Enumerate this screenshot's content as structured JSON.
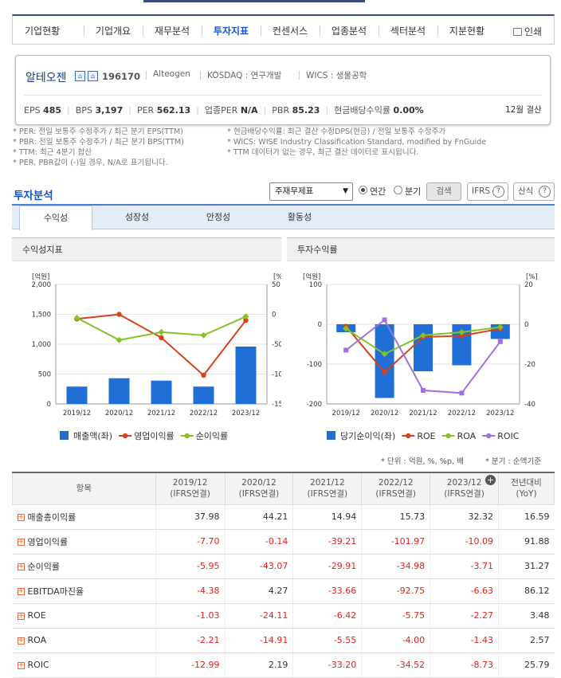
{
  "nav": {
    "tabs": [
      "기업현황",
      "기업개요",
      "재무분석",
      "투자지표",
      "컨센서스",
      "업종분석",
      "섹터분석",
      "지분현황"
    ],
    "active": "투자지표",
    "print_label": "인쇄"
  },
  "company": {
    "name": "알테오젠",
    "code": "196170",
    "eng_name": "Alteogen",
    "market": "KOSDAQ : 연구개발",
    "wics": "WICS : 생물공학",
    "metrics": [
      {
        "label": "EPS",
        "value": "485"
      },
      {
        "label": "BPS",
        "value": "3,197"
      },
      {
        "label": "PER",
        "value": "562.13"
      },
      {
        "label": "업종PER",
        "value": "N/A"
      },
      {
        "label": "PBR",
        "value": "85.23"
      },
      {
        "label": "현금배당수익률",
        "value": "0.00%"
      }
    ],
    "fiscal": "12월 결산"
  },
  "notes_left": [
    "* PER: 전일 보통주 수정주가 / 최근 분기 EPS(TTM)",
    "* PBR: 전일 보통주 수정주가 / 최근 분기 BPS(TTM)",
    "* TTM: 최근 4분기 합산",
    "* PER, PBR값이 (-)일 경우, N/A로 표기됩니다."
  ],
  "notes_right": [
    "* 현금배당수익률: 최근 결산 수정DPS(현금) / 전일 보통주 수정주가",
    "* WICS: WISE Industry Classification Standard, modified by FnGuide",
    "* TTM 데이터가 없는 경우, 최근 결산 데이터로 표시됩니다."
  ],
  "analysis": {
    "title": "투자분석",
    "select_value": "주재무제표",
    "radio_annual": "연간",
    "radio_quarter": "분기",
    "search_label": "검색",
    "ifrs_label": "IFRS",
    "formula_label": "산식",
    "subtabs": [
      "수익성",
      "성장성",
      "안정성",
      "활동성"
    ],
    "active_subtab": "수익성"
  },
  "left_panel_title": "수익성지표",
  "right_panel_title": "투자수익률",
  "unit_note": "* 단위 : 억원, %, %p, 배",
  "period_note": "* 분기 : 순액기준",
  "table": {
    "header_item": "항목",
    "columns": [
      "2019/12\n(IFRS연결)",
      "2020/12\n(IFRS연결)",
      "2021/12\n(IFRS연결)",
      "2022/12\n(IFRS연결)",
      "2023/12\n(IFRS연결)",
      "전년대비\n(YoY)"
    ],
    "rows": [
      {
        "name": "매출총이익률",
        "values": [
          "37.98",
          "44.21",
          "14.94",
          "15.73",
          "32.32",
          "16.59"
        ]
      },
      {
        "name": "영업이익률",
        "values": [
          "-7.70",
          "-0.14",
          "-39.21",
          "-101.97",
          "-10.09",
          "91.88"
        ]
      },
      {
        "name": "순이익률",
        "values": [
          "-5.95",
          "-43.07",
          "-29.91",
          "-34.98",
          "-3.71",
          "31.27"
        ]
      },
      {
        "name": "EBITDA마진율",
        "values": [
          "-4.38",
          "4.27",
          "-33.66",
          "-92.75",
          "-6.63",
          "86.12"
        ]
      },
      {
        "name": "ROE",
        "values": [
          "-1.03",
          "-24.11",
          "-6.42",
          "-5.75",
          "-2.27",
          "3.48"
        ]
      },
      {
        "name": "ROA",
        "values": [
          "-2.21",
          "-14.91",
          "-5.55",
          "-4.00",
          "-1.43",
          "2.57"
        ]
      },
      {
        "name": "ROIC",
        "values": [
          "-12.99",
          "2.19",
          "-33.20",
          "-34.52",
          "-8.73",
          "25.79"
        ]
      }
    ]
  },
  "chart_data": [
    {
      "type": "bar",
      "title": "수익성지표",
      "categories": [
        "2019/12",
        "2020/12",
        "2021/12",
        "2022/12",
        "2023/12"
      ],
      "y_left_label": "[억원]",
      "y_right_label": "[%]",
      "ylim_left": [
        0,
        2000
      ],
      "ylim_right": [
        -150,
        50
      ],
      "yticks_left": [
        "0",
        "500",
        "1,000",
        "1,500",
        "2,000"
      ],
      "yticks_right": [
        "-150",
        "-100",
        "-50",
        "0",
        "50"
      ],
      "series": [
        {
          "name": "매출액(좌)",
          "type": "bar",
          "axis": "left",
          "color": "#1f6fd6",
          "values": [
            290,
            430,
            390,
            290,
            960
          ]
        },
        {
          "name": "영업이익률",
          "type": "line",
          "axis": "right",
          "color": "#d9401a",
          "values": [
            -7.7,
            -0.14,
            -39.21,
            -101.97,
            -10.09
          ]
        },
        {
          "name": "순이익률",
          "type": "line",
          "axis": "right",
          "color": "#84c225",
          "values": [
            -5.95,
            -43.07,
            -29.91,
            -34.98,
            -3.71
          ]
        }
      ]
    },
    {
      "type": "bar",
      "title": "투자수익률",
      "categories": [
        "2019/12",
        "2020/12",
        "2021/12",
        "2022/12",
        "2023/12"
      ],
      "y_left_label": "[억원]",
      "y_right_label": "[%]",
      "ylim_left": [
        -200,
        100
      ],
      "ylim_right": [
        -40,
        20
      ],
      "yticks_left": [
        "-200",
        "-100",
        "0",
        "100"
      ],
      "yticks_right": [
        "-40",
        "-20",
        "0",
        "20"
      ],
      "series": [
        {
          "name": "당기순이익(좌)",
          "type": "bar",
          "axis": "left",
          "color": "#1f6fd6",
          "values": [
            -20,
            -185,
            -118,
            -103,
            -37
          ]
        },
        {
          "name": "ROE",
          "type": "line",
          "axis": "right",
          "color": "#d9401a",
          "values": [
            -1.03,
            -24.11,
            -6.42,
            -5.75,
            -2.27
          ]
        },
        {
          "name": "ROA",
          "type": "line",
          "axis": "right",
          "color": "#84c225",
          "values": [
            -2.21,
            -14.91,
            -5.55,
            -4.0,
            -1.43
          ]
        },
        {
          "name": "ROIC",
          "type": "line",
          "axis": "right",
          "color": "#a070e0",
          "values": [
            -12.99,
            2.19,
            -33.2,
            -34.52,
            -8.73
          ]
        }
      ]
    }
  ]
}
